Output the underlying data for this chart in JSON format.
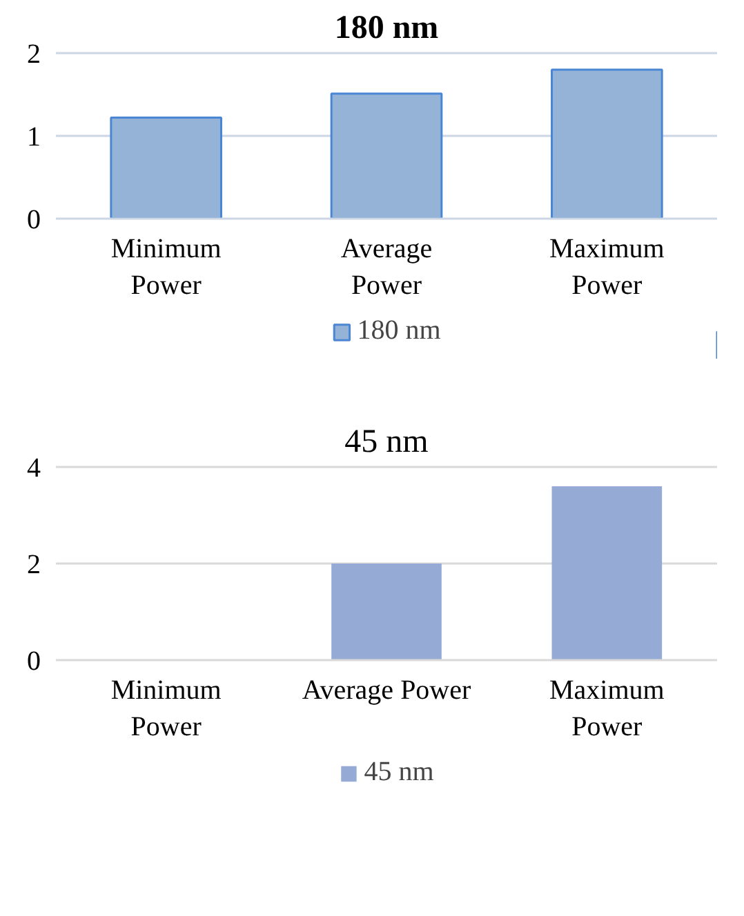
{
  "chart_data": [
    {
      "type": "bar",
      "title": "180 nm",
      "categories": [
        "Minimum\nPower",
        "Average\nPower",
        "Maximum\nPower"
      ],
      "series": [
        {
          "name": "180 nm",
          "color": "#95b3d7",
          "values": [
            1.22,
            1.51,
            1.8
          ]
        }
      ],
      "ylim": [
        0,
        2
      ],
      "yticks": [
        0,
        1,
        2
      ],
      "grid": "y",
      "legend": "bottom"
    },
    {
      "type": "bar",
      "title": "45 nm",
      "categories": [
        "Minimum\nPower",
        "Average Power",
        "Maximum\nPower"
      ],
      "series": [
        {
          "name": "45 nm",
          "color": "#95abd5",
          "values": [
            0,
            2.0,
            3.6
          ]
        }
      ],
      "ylim": [
        0,
        4
      ],
      "yticks": [
        0,
        2,
        4
      ],
      "grid": "y",
      "legend": "bottom"
    }
  ]
}
